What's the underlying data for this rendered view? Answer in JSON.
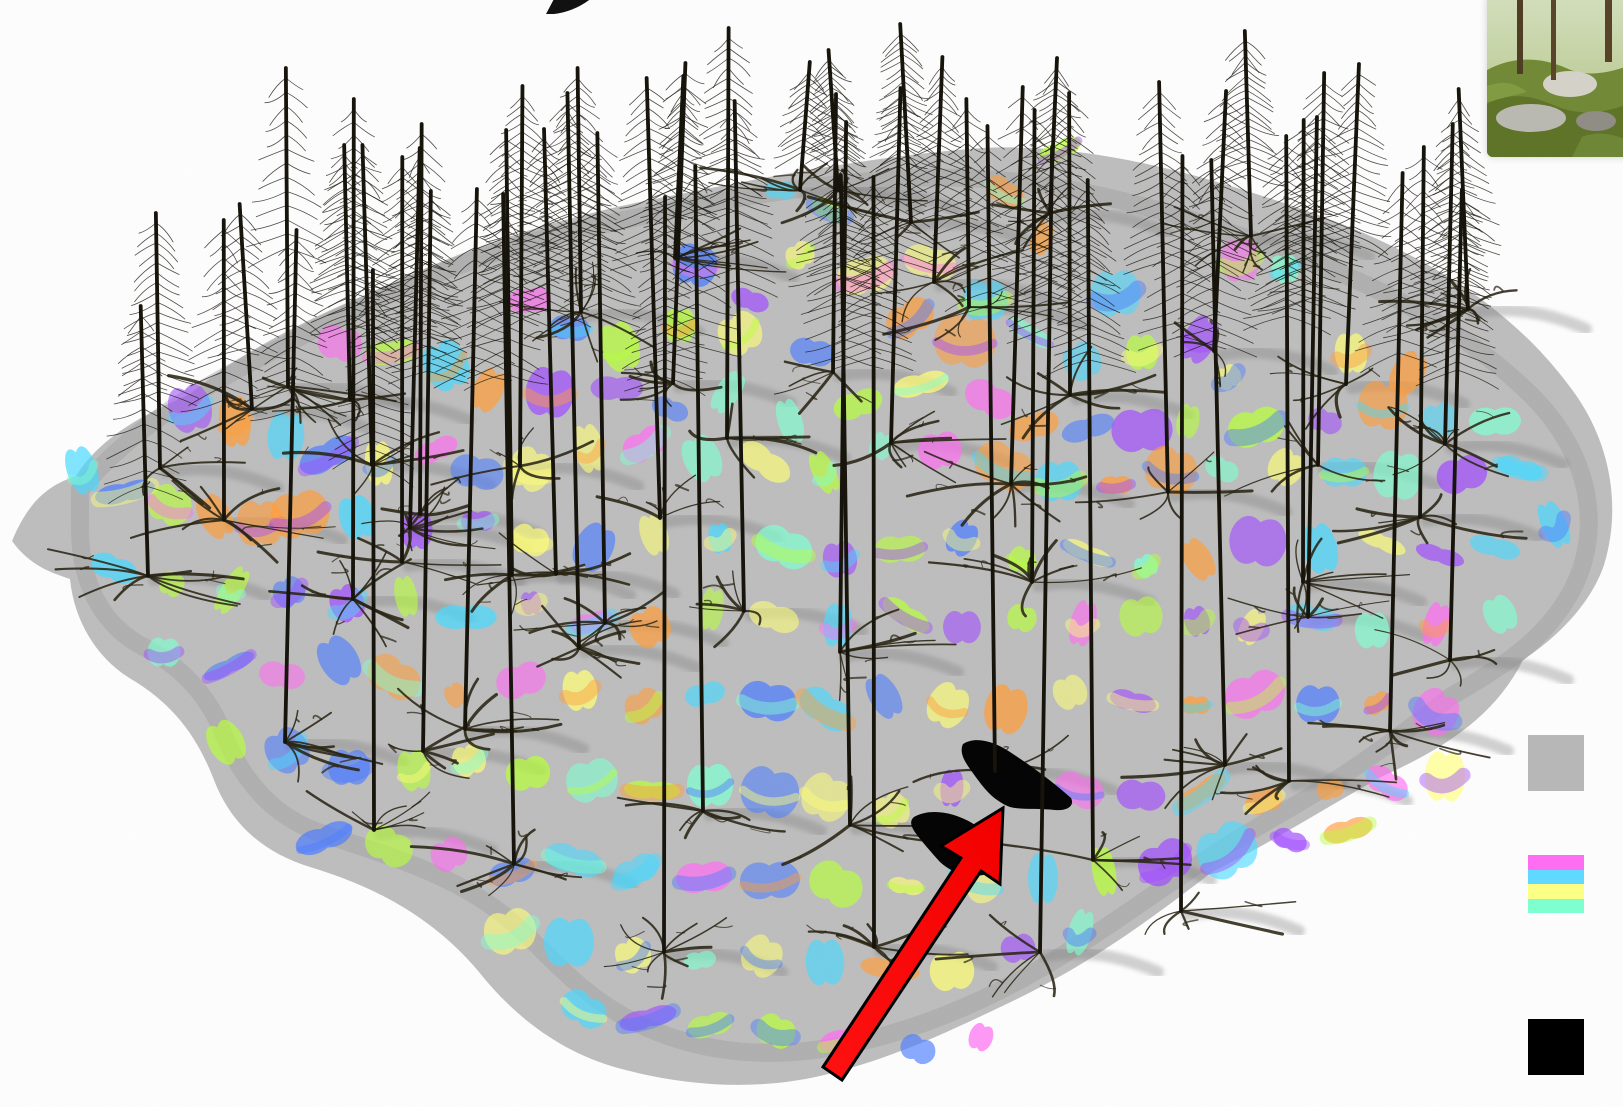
{
  "title": "",
  "colors": {
    "background": "#ffffff",
    "ground_gray": "#bdbdbd",
    "ground_shadow": "#8e8e8e",
    "tree_dark": "#16140b",
    "arrow": "#ff0000",
    "black_obstacle": "#050505",
    "patch_magenta": "#ff6ef2",
    "patch_cyan": "#48d9ff",
    "patch_yellow": "#ffff77",
    "patch_mint": "#80ffd0",
    "patch_violet": "#a14dff",
    "patch_blue": "#4d7dff",
    "patch_orange": "#ff9d3a",
    "patch_lime": "#b8ff3b"
  },
  "legend": [
    {
      "name": "gray-swatch",
      "label": ""
    },
    {
      "name": "multicolor-stack-swatch",
      "label": ""
    },
    {
      "name": "black-swatch",
      "label": ""
    }
  ],
  "legend_colors": {
    "gray": "#b7b7b7",
    "stack": [
      "#ff6ef2",
      "#61d8ff",
      "#fbff86",
      "#7dffcf"
    ],
    "black": "#000000"
  }
}
